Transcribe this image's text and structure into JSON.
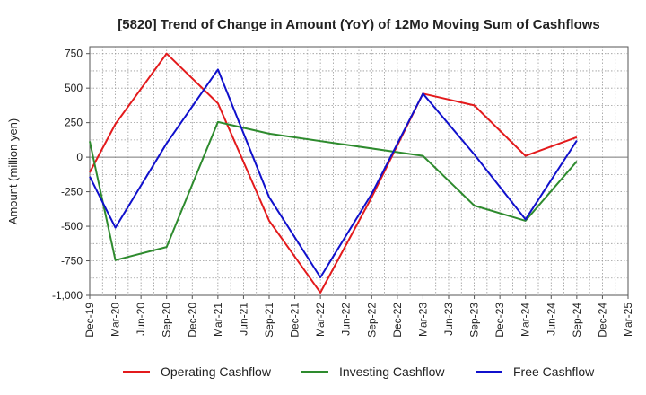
{
  "chart_data": {
    "type": "line",
    "title": "[5820]  Trend of Change in Amount (YoY) of 12Mo Moving Sum of Cashflows",
    "xlabel": "",
    "ylabel": "Amount (million yen)",
    "ylim": [
      -1000,
      800
    ],
    "yticks": [
      750,
      500,
      250,
      0,
      -250,
      -500,
      -750,
      -1000
    ],
    "ytick_labels": [
      "750",
      "500",
      "250",
      "0",
      "-250",
      "-500",
      "-750",
      "-1,000"
    ],
    "categories": [
      "Dec-19",
      "Mar-20",
      "Jun-20",
      "Sep-20",
      "Dec-20",
      "Mar-21",
      "Jun-21",
      "Sep-21",
      "Dec-21",
      "Mar-22",
      "Jun-22",
      "Sep-22",
      "Dec-22",
      "Mar-23",
      "Jun-23",
      "Sep-23",
      "Dec-23",
      "Mar-24",
      "Jun-24",
      "Sep-24",
      "Dec-24",
      "Mar-25"
    ],
    "grid": true,
    "legend_position": "bottom",
    "series": [
      {
        "name": "Operating Cashflow",
        "color": "#e31a1c",
        "values": [
          -110,
          240,
          null,
          750,
          null,
          390,
          null,
          -460,
          null,
          -980,
          null,
          -290,
          null,
          460,
          null,
          375,
          null,
          10,
          null,
          145,
          null,
          null
        ]
      },
      {
        "name": "Investing Cashflow",
        "color": "#2e8b2e",
        "values": [
          115,
          -745,
          null,
          -650,
          null,
          255,
          null,
          170,
          null,
          null,
          null,
          null,
          null,
          10,
          null,
          -350,
          null,
          -460,
          null,
          -30,
          null,
          null
        ]
      },
      {
        "name": "Free Cashflow",
        "color": "#1010cc",
        "values": [
          -140,
          -510,
          null,
          100,
          null,
          635,
          null,
          -290,
          null,
          -870,
          null,
          -265,
          null,
          460,
          null,
          20,
          null,
          -450,
          null,
          120,
          null,
          null
        ]
      }
    ]
  }
}
